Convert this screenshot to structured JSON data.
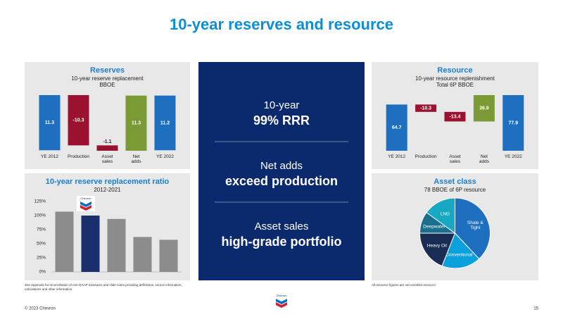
{
  "title": "10-year reserves and resource",
  "chart_data": [
    {
      "type": "waterfall",
      "title": "Reserves",
      "subtitle": [
        "10-year reserve replacement",
        "BBOE"
      ],
      "categories": [
        "YE 2012",
        "Production",
        "Asset sales",
        "Net adds",
        "YE 2022"
      ],
      "values": [
        11.3,
        -10.3,
        -1.1,
        11.3,
        11.2
      ],
      "is_total": [
        true,
        false,
        false,
        false,
        true
      ],
      "colors": [
        "#1f6fc0",
        "#9b1230",
        "#9b1230",
        "#7a9a35",
        "#1f6fc0"
      ]
    },
    {
      "type": "bar",
      "title": "10-year reserve replacement ratio",
      "subtitle": [
        "2012-2021"
      ],
      "categories": [
        null,
        null,
        null,
        null,
        null
      ],
      "values": [
        107,
        100,
        94,
        62,
        57
      ],
      "colors": [
        "#8c8c8c",
        "#1a2f6e",
        "#8c8c8c",
        "#8c8c8c",
        "#8c8c8c"
      ],
      "ylim": [
        0,
        125
      ],
      "yticks": [
        {
          "value": 0,
          "label": "0%"
        },
        {
          "value": 25,
          "label": "25%"
        },
        {
          "value": 50,
          "label": "50%"
        },
        {
          "value": 75,
          "label": "75%"
        },
        {
          "value": 100,
          "label": "100%"
        },
        {
          "value": 125,
          "label": "125%"
        }
      ]
    },
    {
      "type": "waterfall",
      "title": "Resource",
      "subtitle": [
        "10-year resource replenishment",
        "Total 6P BBOE"
      ],
      "categories": [
        "YE 2012",
        "Production",
        "Asset sales",
        "Net adds",
        "YE 2022"
      ],
      "values": [
        64.7,
        -10.3,
        -13.4,
        36.9,
        77.9
      ],
      "is_total": [
        true,
        false,
        false,
        false,
        true
      ],
      "colors": [
        "#1f6fc0",
        "#9b1230",
        "#9b1230",
        "#7a9a35",
        "#1f6fc0"
      ]
    },
    {
      "type": "pie",
      "title": "Asset class",
      "subtitle": [
        "78 BBOE of 6P resource"
      ],
      "categories": [
        "Shale & Tight",
        "Conventional",
        "Heavy Oil",
        "Deepwater",
        "LNG"
      ],
      "values": [
        38,
        18,
        19,
        10,
        15
      ],
      "colors": [
        "#1f6fc0",
        "#0aa0dc",
        "#1a2e55",
        "#1a6e8e",
        "#17a9c4"
      ]
    }
  ],
  "center_panel": [
    {
      "label": "10-year",
      "headline": "99% RRR"
    },
    {
      "label": "Net adds",
      "headline": "exceed production"
    },
    {
      "label": "Asset sales",
      "headline": "high-grade portfolio"
    }
  ],
  "footnotes": {
    "left": "See Appendix for reconciliation of non-GAAP measures and slide notes providing definitions, source information, calculations and other information.",
    "right": "All resource figures are net unrisked resource."
  },
  "logo_text": "Chevron",
  "footer": {
    "copyright": "© 2023 Chevron",
    "page": "15"
  }
}
